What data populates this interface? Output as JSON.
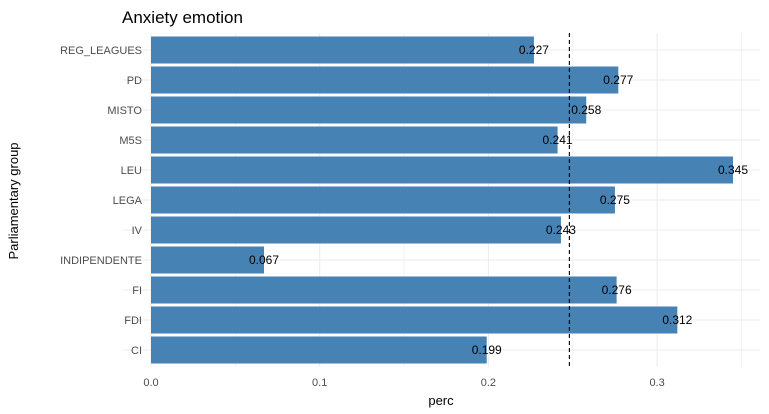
{
  "chart_data": {
    "type": "bar",
    "orientation": "horizontal",
    "title": "Anxiety emotion",
    "xlabel": "perc",
    "ylabel": "Parliamentary group",
    "categories": [
      "REG_LEAGUES",
      "PD",
      "MISTO",
      "M5S",
      "LEU",
      "LEGA",
      "IV",
      "INDIPENDENTE",
      "FI",
      "FDI",
      "CI"
    ],
    "values": [
      0.227,
      0.277,
      0.258,
      0.241,
      0.345,
      0.275,
      0.243,
      0.067,
      0.276,
      0.312,
      0.199
    ],
    "value_labels": [
      "0.227",
      "0.277",
      "0.258",
      "0.241",
      "0.345",
      "0.275",
      "0.243",
      "0.067",
      "0.276",
      "0.312",
      "0.199"
    ],
    "xticks": [
      "0.0",
      "0.1",
      "0.2",
      "0.3"
    ],
    "xlim": [
      0,
      0.36
    ],
    "reference_line": 0.248,
    "grid": true,
    "bar_color": "#4682B4",
    "grid_color": "#ebebeb",
    "reference_line_color": "#000000"
  }
}
